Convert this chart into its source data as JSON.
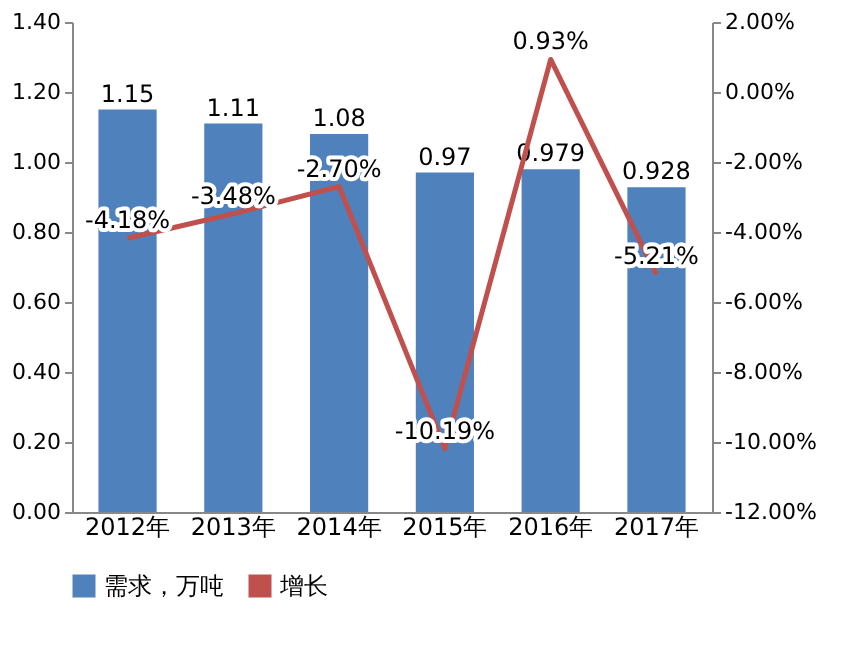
{
  "chart_data": {
    "type": "bar",
    "categories": [
      "2012年",
      "2013年",
      "2014年",
      "2015年",
      "2016年",
      "2017年"
    ],
    "series": [
      {
        "name": "需求，万吨",
        "color": "#4f81bd",
        "values": [
          1.15,
          1.11,
          1.08,
          0.97,
          0.979,
          0.928
        ],
        "value_labels": [
          "1.15",
          "1.11",
          "1.08",
          "0.97",
          "0.979",
          "0.928"
        ]
      },
      {
        "name": "增长",
        "type": "line",
        "axis": "y2",
        "color": "#c0504d",
        "values": [
          -4.18,
          -3.48,
          -2.7,
          -10.19,
          0.93,
          -5.21
        ],
        "value_labels": [
          "-4.18%",
          "-3.48%",
          "-2.70%",
          "-10.19%",
          "0.93%",
          "-5.21%"
        ]
      }
    ],
    "ylim": [
      0,
      1.4
    ],
    "yticks": [
      {
        "value": 0,
        "label": "0.00"
      },
      {
        "value": 0.2,
        "label": "0.20"
      },
      {
        "value": 0.4,
        "label": "0.40"
      },
      {
        "value": 0.6,
        "label": "0.60"
      },
      {
        "value": 0.8,
        "label": "0.80"
      },
      {
        "value": 1.0,
        "label": "1.00"
      },
      {
        "value": 1.2,
        "label": "1.20"
      },
      {
        "value": 1.4,
        "label": "1.40"
      }
    ],
    "y2lim": [
      -12,
      2
    ],
    "y2ticks": [
      {
        "value": -12,
        "label": "-12.00%"
      },
      {
        "value": -10,
        "label": "-10.00%"
      },
      {
        "value": -8,
        "label": "-8.00%"
      },
      {
        "value": -6,
        "label": "-6.00%"
      },
      {
        "value": -4,
        "label": "-4.00%"
      },
      {
        "value": -2,
        "label": "-2.00%"
      },
      {
        "value": 0,
        "label": "0.00%"
      },
      {
        "value": 2,
        "label": "2.00%"
      }
    ],
    "grid": false,
    "legend": "bottom",
    "marker": "none",
    "line_style": "solid"
  }
}
